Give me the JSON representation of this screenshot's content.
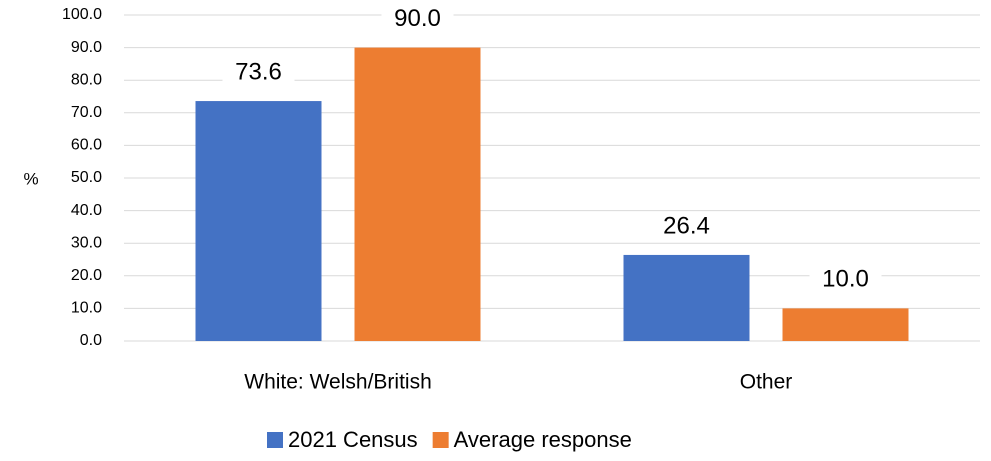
{
  "chart_data": {
    "type": "bar",
    "y_label": "%",
    "categories": [
      "White: Welsh/British",
      "Other"
    ],
    "series": [
      {
        "name": "2021 Census",
        "color": "#4472c4",
        "values": [
          73.6,
          26.4
        ],
        "value_labels": [
          "73.6",
          "26.4"
        ]
      },
      {
        "name": "Average response",
        "color": "#ed7d31",
        "values": [
          90,
          10
        ],
        "value_labels": [
          "90.0",
          "10.0"
        ]
      }
    ],
    "ylim": [
      0,
      100
    ],
    "yticks": [
      {
        "value": 0,
        "label": "0.0"
      },
      {
        "value": 10,
        "label": "10.0"
      },
      {
        "value": 20,
        "label": "20.0"
      },
      {
        "value": 30,
        "label": "30.0"
      },
      {
        "value": 40,
        "label": "40.0"
      },
      {
        "value": 50,
        "label": "50.0"
      },
      {
        "value": 60,
        "label": "60.0"
      },
      {
        "value": 70,
        "label": "70.0"
      },
      {
        "value": 80,
        "label": "80.0"
      },
      {
        "value": 90,
        "label": "90.0"
      },
      {
        "value": 100,
        "label": "100.0"
      }
    ],
    "grid": true,
    "legend": "bottom"
  }
}
